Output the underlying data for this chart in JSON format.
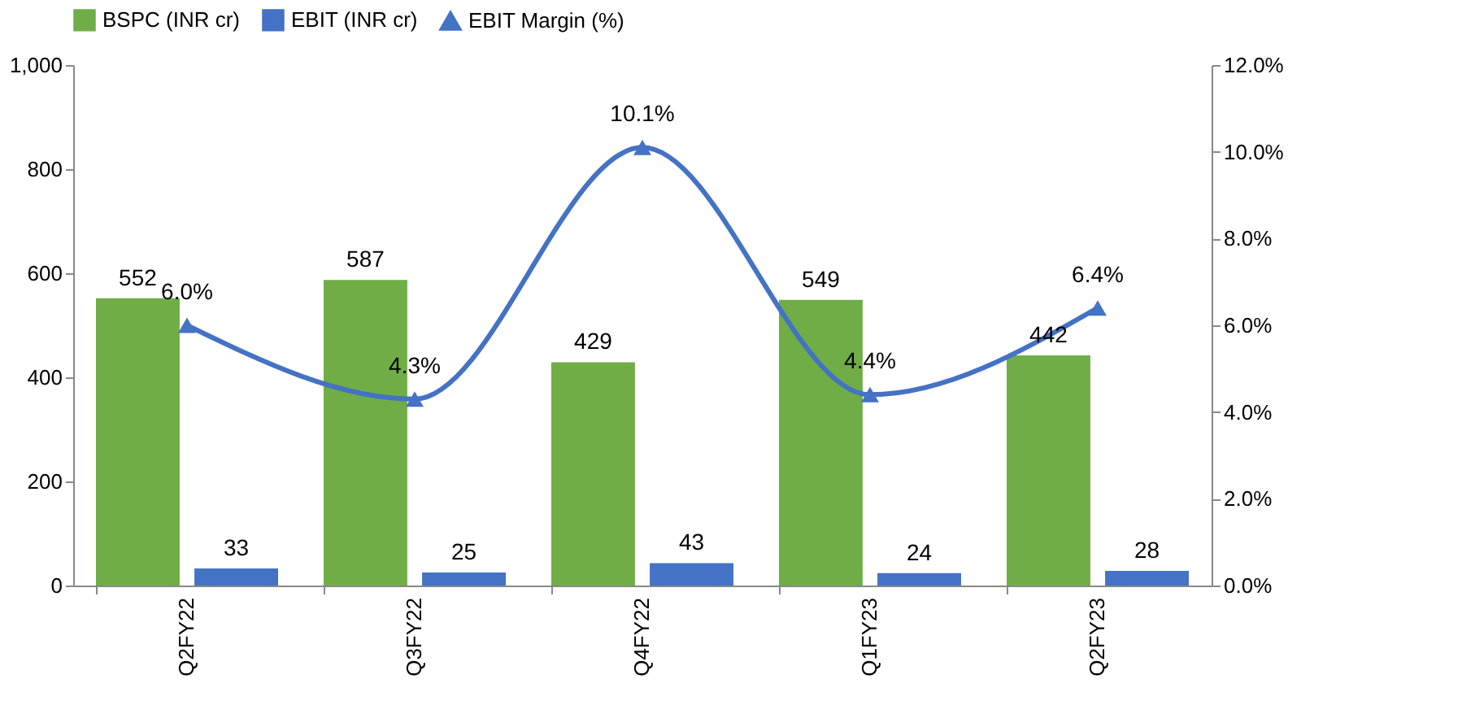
{
  "chart_data": {
    "type": "bar",
    "categories": [
      "Q2FY22",
      "Q3FY22",
      "Q4FY22",
      "Q1FY23",
      "Q2FY23"
    ],
    "series": [
      {
        "name": "BSPC (INR cr)",
        "color": "#70ad47",
        "values": [
          552,
          587,
          429,
          549,
          442
        ],
        "value_labels": [
          "552",
          "587",
          "429",
          "549",
          "442"
        ]
      },
      {
        "name": "EBIT (INR cr)",
        "color": "#4472c4",
        "values": [
          33,
          25,
          43,
          24,
          28
        ],
        "value_labels": [
          "33",
          "25",
          "43",
          "24",
          "28"
        ]
      },
      {
        "name": "EBIT Margin (%)",
        "type": "line",
        "axis": "y2",
        "color": "#4472c4",
        "marker": "triangle",
        "line_style": "solid",
        "values": [
          6.0,
          4.3,
          10.1,
          4.4,
          6.4
        ],
        "value_labels": [
          "6.0%",
          "4.3%",
          "10.1%",
          "4.4%",
          "6.4%"
        ]
      }
    ],
    "ylim": [
      0,
      1000
    ],
    "yticks": [
      0,
      200,
      400,
      600,
      800,
      {
        "value": 1000,
        "label": "1,000"
      }
    ],
    "y2lim": [
      0,
      12
    ],
    "y2ticks": [
      {
        "value": 0,
        "label": "0.0%"
      },
      {
        "value": 2,
        "label": "2.0%"
      },
      {
        "value": 4,
        "label": "4.0%"
      },
      {
        "value": 6,
        "label": "6.0%"
      },
      {
        "value": 8,
        "label": "8.0%"
      },
      {
        "value": 10,
        "label": "10.0%"
      },
      {
        "value": 12,
        "label": "12.0%"
      }
    ],
    "legend": "top",
    "grid": false
  }
}
